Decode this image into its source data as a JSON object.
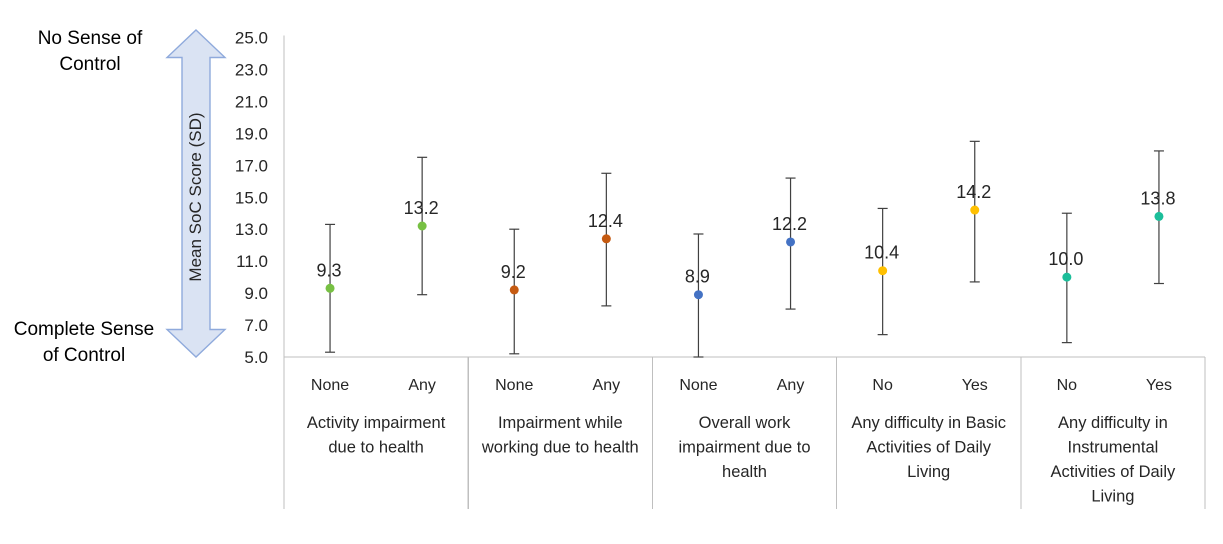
{
  "annotations": {
    "top": {
      "line1": "No Sense of",
      "line2": "Control"
    },
    "bottom": {
      "line1": "Complete Sense",
      "line2": "of Control"
    }
  },
  "chart_data": {
    "type": "scatter",
    "title": "",
    "ylabel": "Mean SoC Score (SD)",
    "ylim": [
      5.0,
      25.0
    ],
    "yticks": [
      "5.0",
      "7.0",
      "9.0",
      "11.0",
      "13.0",
      "15.0",
      "17.0",
      "19.0",
      "21.0",
      "23.0",
      "25.0"
    ],
    "grid": false,
    "legend": false,
    "error_bars": "SD whiskers",
    "axis_annotations": {
      "top": "No Sense of Control",
      "bottom": "Complete Sense of Control"
    },
    "groups": [
      {
        "label": "Activity impairment due to health",
        "label_lines": [
          "Activity impairment",
          "due to health"
        ],
        "color": "#77C043",
        "points": [
          {
            "category": "None",
            "mean": 9.3,
            "label": "9.3",
            "whisker_low": 5.3,
            "whisker_high": 13.3
          },
          {
            "category": "Any",
            "mean": 13.2,
            "label": "13.2",
            "whisker_low": 8.9,
            "whisker_high": 17.5
          }
        ]
      },
      {
        "label": "Impairment while working due to health",
        "label_lines": [
          "Impairment while",
          "working due to health"
        ],
        "color": "#C55A11",
        "points": [
          {
            "category": "None",
            "mean": 9.2,
            "label": "9.2",
            "whisker_low": 5.2,
            "whisker_high": 13.0
          },
          {
            "category": "Any",
            "mean": 12.4,
            "label": "12.4",
            "whisker_low": 8.2,
            "whisker_high": 16.5
          }
        ]
      },
      {
        "label": "Overall work impairment due to health",
        "label_lines": [
          "Overall work",
          "impairment due to",
          "health"
        ],
        "color": "#4472C4",
        "points": [
          {
            "category": "None",
            "mean": 8.9,
            "label": "8.9",
            "whisker_low": 5.0,
            "whisker_high": 12.7
          },
          {
            "category": "Any",
            "mean": 12.2,
            "label": "12.2",
            "whisker_low": 8.0,
            "whisker_high": 16.2
          }
        ]
      },
      {
        "label": "Any difficulty in Basic Activities of Daily Living",
        "label_lines": [
          "Any difficulty in Basic",
          "Activities of Daily",
          "Living"
        ],
        "color": "#FFC000",
        "points": [
          {
            "category": "No",
            "mean": 10.4,
            "label": "10.4",
            "whisker_low": 6.4,
            "whisker_high": 14.3
          },
          {
            "category": "Yes",
            "mean": 14.2,
            "label": "14.2",
            "whisker_low": 9.7,
            "whisker_high": 18.5
          }
        ]
      },
      {
        "label": "Any difficulty in Instrumental Activities of Daily Living",
        "label_lines": [
          "Any difficulty in",
          "Instrumental",
          "Activities of Daily",
          "Living"
        ],
        "color": "#1CBE9A",
        "points": [
          {
            "category": "No",
            "mean": 10.0,
            "label": "10.0",
            "whisker_low": 5.9,
            "whisker_high": 14.0
          },
          {
            "category": "Yes",
            "mean": 13.8,
            "label": "13.8",
            "whisker_low": 9.6,
            "whisker_high": 17.9
          }
        ]
      }
    ]
  },
  "colors": {
    "error_bar": "#404040",
    "axis_line": "#BFBFBF",
    "divider": "#BFBFBF",
    "text": "#262626",
    "arrow_fill": "#DAE3F3",
    "arrow_stroke": "#8FAADC"
  }
}
